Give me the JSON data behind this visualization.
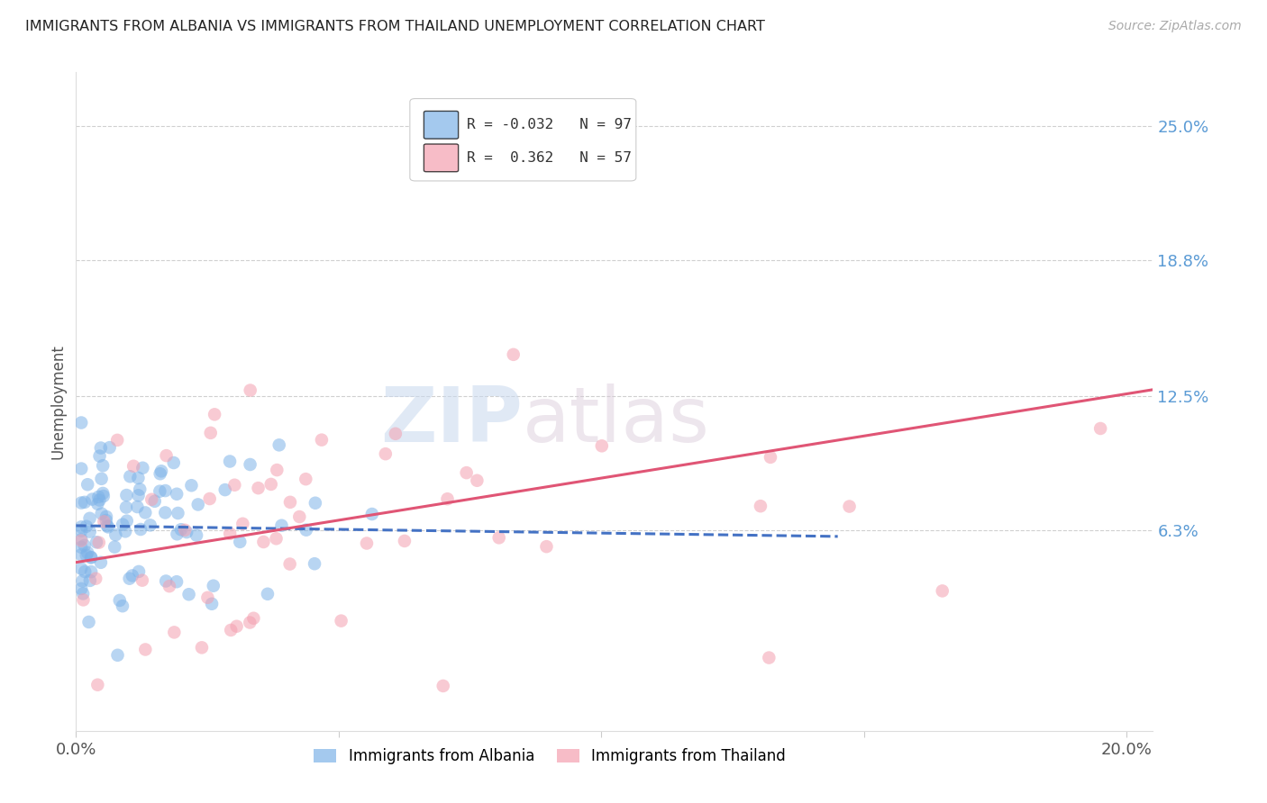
{
  "title": "IMMIGRANTS FROM ALBANIA VS IMMIGRANTS FROM THAILAND UNEMPLOYMENT CORRELATION CHART",
  "source": "Source: ZipAtlas.com",
  "ylabel": "Unemployment",
  "xlim": [
    0.0,
    0.205
  ],
  "ylim": [
    -0.03,
    0.275
  ],
  "yticks": [
    0.063,
    0.125,
    0.188,
    0.25
  ],
  "ytick_labels": [
    "6.3%",
    "12.5%",
    "18.8%",
    "25.0%"
  ],
  "xticks": [
    0.0,
    0.05,
    0.1,
    0.15,
    0.2
  ],
  "xtick_labels": [
    "0.0%",
    "",
    "",
    "",
    "20.0%"
  ],
  "albania_color": "#7eb3e8",
  "thailand_color": "#f4a0b0",
  "albania_R": -0.032,
  "albania_N": 97,
  "thailand_R": 0.362,
  "thailand_N": 57,
  "watermark_zip": "ZIP",
  "watermark_atlas": "atlas",
  "background_color": "#ffffff",
  "grid_color": "#d0d0d0",
  "right_tick_color": "#5b9bd5",
  "albania_line_color": "#4472c4",
  "thailand_line_color": "#e05575"
}
